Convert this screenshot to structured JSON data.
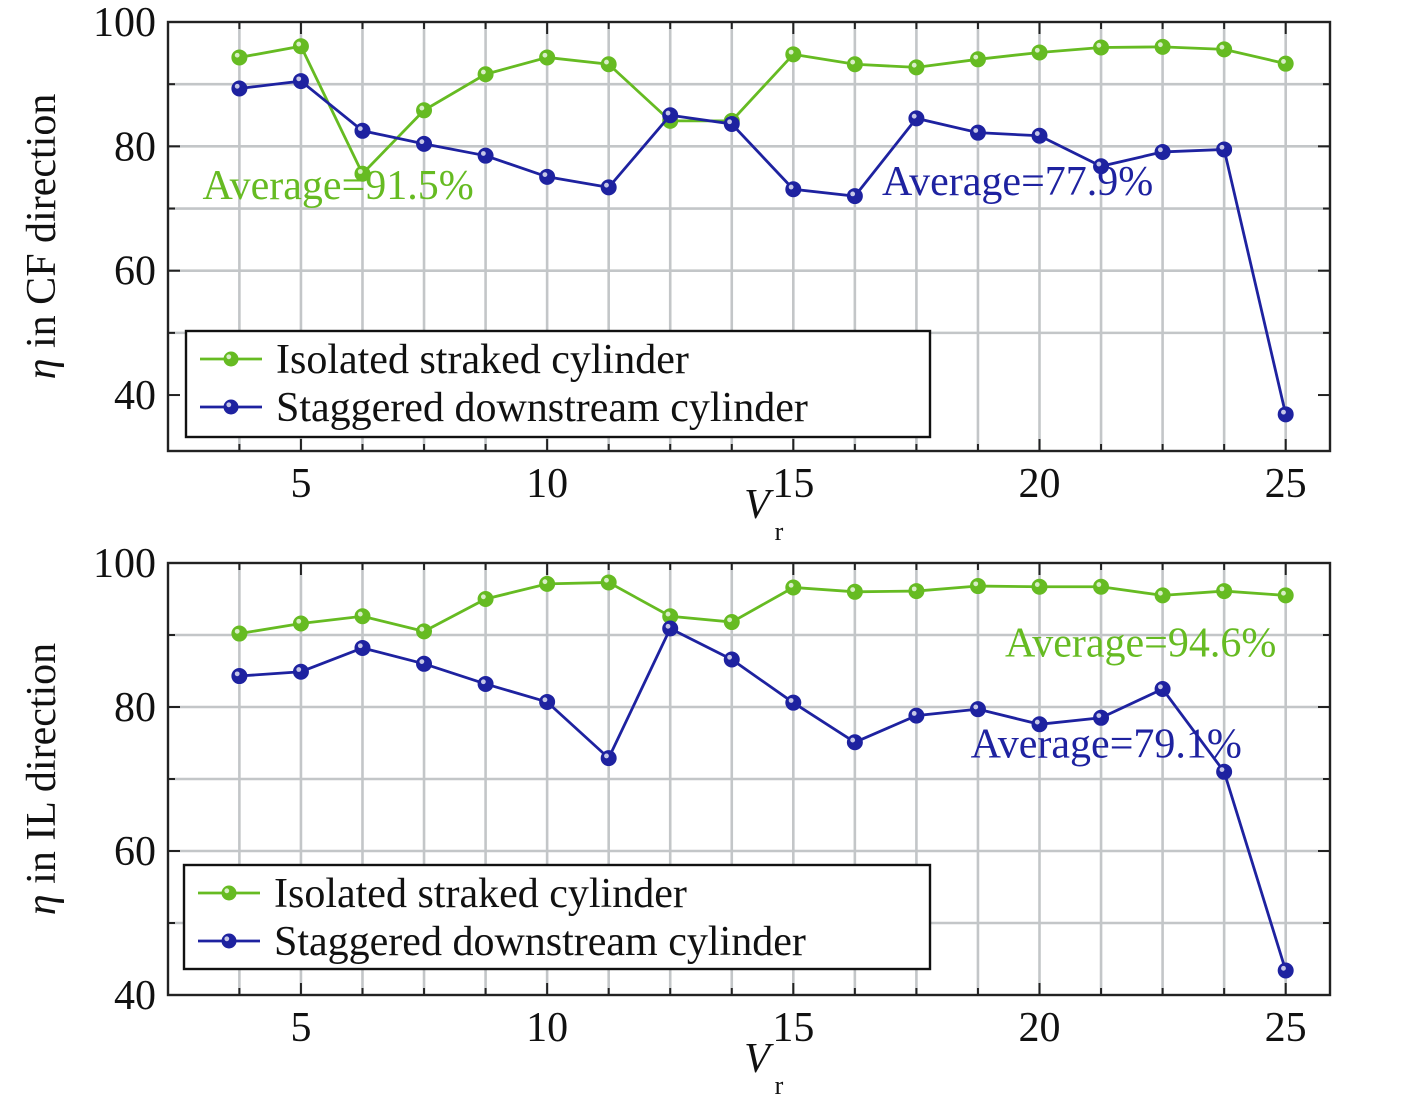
{
  "chart_data": [
    {
      "type": "line",
      "xlabel": "V",
      "xlabel_sub": "r",
      "ylabel": "η in CF direction",
      "xlim": [
        2.3,
        25.9
      ],
      "ylim": [
        31,
        100
      ],
      "xticks": [
        "5",
        "10",
        "15",
        "20",
        "25"
      ],
      "yticks": [
        "40",
        "60",
        "80",
        "100"
      ],
      "grid": true,
      "legend_position": "bottom-left",
      "x": [
        3.75,
        5,
        6.25,
        7.5,
        8.75,
        10,
        11.25,
        12.5,
        13.75,
        15,
        16.25,
        17.5,
        18.75,
        20,
        21.25,
        22.5,
        23.75,
        25
      ],
      "series": [
        {
          "name": "Isolated straked cylinder",
          "color": "#66bb22",
          "values": [
            94.3,
            96.1,
            75.6,
            85.8,
            91.6,
            94.3,
            93.2,
            84.1,
            84.1,
            94.8,
            93.2,
            92.7,
            94.0,
            95.1,
            95.9,
            96.0,
            95.6,
            93.3
          ]
        },
        {
          "name": "Staggered downstream cylinder",
          "color": "#1e22a0",
          "values": [
            89.3,
            90.5,
            82.5,
            80.4,
            78.5,
            75.1,
            73.4,
            85.0,
            83.6,
            73.1,
            72.0,
            84.5,
            82.2,
            81.7,
            76.8,
            79.1,
            79.5,
            36.9
          ]
        }
      ],
      "annotations": [
        {
          "text": "Average=91.5%",
          "color": "#66bb22",
          "x": 3.0,
          "y": 71.5
        },
        {
          "text": "Average=77.9%",
          "color": "#1e22a0",
          "x": 16.8,
          "y": 72.2
        }
      ]
    },
    {
      "type": "line",
      "xlabel": "V",
      "xlabel_sub": "r",
      "ylabel": "η in IL direction",
      "xlim": [
        2.3,
        25.9
      ],
      "ylim": [
        40,
        100
      ],
      "xticks": [
        "5",
        "10",
        "15",
        "20",
        "25"
      ],
      "yticks": [
        "40",
        "60",
        "80",
        "100"
      ],
      "grid": true,
      "legend_position": "bottom-left",
      "x": [
        3.75,
        5,
        6.25,
        7.5,
        8.75,
        10,
        11.25,
        12.5,
        13.75,
        15,
        16.25,
        17.5,
        18.75,
        20,
        21.25,
        22.5,
        23.75,
        25
      ],
      "series": [
        {
          "name": "Isolated straked cylinder",
          "color": "#66bb22",
          "values": [
            90.2,
            91.6,
            92.6,
            90.5,
            95.0,
            97.1,
            97.3,
            92.6,
            91.8,
            96.6,
            96.0,
            96.1,
            96.8,
            96.7,
            96.7,
            95.5,
            96.1,
            95.5
          ]
        },
        {
          "name": "Staggered downstream cylinder",
          "color": "#1e22a0",
          "values": [
            84.3,
            84.9,
            88.2,
            86.0,
            83.2,
            80.7,
            72.9,
            90.9,
            86.6,
            80.6,
            75.1,
            78.8,
            79.7,
            77.6,
            78.5,
            82.5,
            71.0,
            43.4
          ]
        }
      ],
      "annotations": [
        {
          "text": "Average=94.6%",
          "color": "#66bb22",
          "x": 19.3,
          "y": 87.0
        },
        {
          "text": "Average=79.1%",
          "color": "#1e22a0",
          "x": 18.6,
          "y": 73.0
        }
      ]
    }
  ]
}
